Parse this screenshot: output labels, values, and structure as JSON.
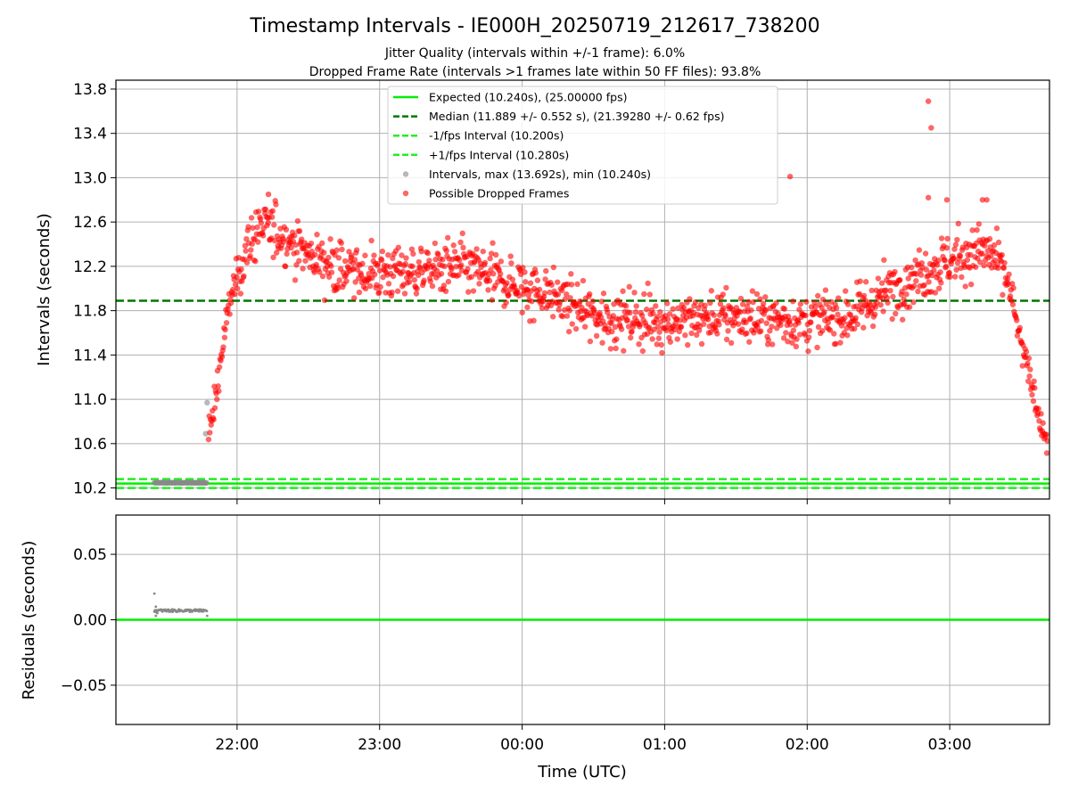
{
  "title": "Timestamp Intervals - IE000H_20250719_212617_738200",
  "subtitle_1": "Jitter Quality (intervals within +/-1 frame): 6.0%",
  "subtitle_2": "Dropped Frame Rate (intervals >1 frames late within 50 FF files): 93.8%",
  "colors": {
    "expected": "#00ee00",
    "median": "#007700",
    "interval_band": "#22ee22",
    "intervals_point": "#888888",
    "dropped_point": "#ff0000",
    "grid": "#b0b0b0"
  },
  "chart_data": [
    {
      "type": "scatter",
      "panel": "top",
      "ylabel": "Intervals (seconds)",
      "xlabel": "",
      "ylim": [
        10.1,
        13.88
      ],
      "x_range_hours": [
        21.15,
        27.7
      ],
      "yticks": [
        10.2,
        10.6,
        11.0,
        11.4,
        11.8,
        12.2,
        12.6,
        13.0,
        13.4,
        13.8
      ],
      "ytick_labels": [
        "10.2",
        "10.6",
        "11.0",
        "11.4",
        "11.8",
        "12.2",
        "12.6",
        "13.0",
        "13.4",
        "13.8"
      ],
      "grid": true,
      "legend_position": "upper-center",
      "reference_lines": [
        {
          "name": "Expected (10.240s), (25.00000 fps)",
          "y": 10.24,
          "style": "solid",
          "color": "#00ee00"
        },
        {
          "name": "Median (11.889 +/- 0.552 s), (21.39280 +/- 0.62 fps)",
          "y": 11.889,
          "style": "dashed",
          "color": "#007700"
        },
        {
          "name": "-1/fps Interval (10.200s)",
          "y": 10.2,
          "style": "dashed",
          "color": "#22ee22"
        },
        {
          "name": "+1/fps Interval (10.280s)",
          "y": 10.28,
          "style": "dashed",
          "color": "#22ee22"
        }
      ],
      "series": [
        {
          "name": "Intervals, max (13.692s), min (10.240s)",
          "color": "#888888"
        },
        {
          "name": "Possible Dropped Frames",
          "color": "#ff0000"
        }
      ],
      "trend_profile": {
        "description_points_x_hours": [
          21.82,
          21.88,
          21.95,
          22.05,
          22.15,
          22.3,
          22.5,
          22.8,
          23.2,
          23.6,
          23.9,
          24.2,
          24.5,
          25.0,
          25.5,
          26.0,
          26.3,
          26.6,
          26.9,
          27.1,
          27.2,
          27.3,
          27.4,
          27.5,
          27.6,
          27.68
        ],
        "description_points_y": [
          10.75,
          11.3,
          11.9,
          12.3,
          12.55,
          12.5,
          12.3,
          12.15,
          12.15,
          12.2,
          12.05,
          11.95,
          11.75,
          11.7,
          11.75,
          11.7,
          11.75,
          12.0,
          12.2,
          12.3,
          12.35,
          12.3,
          12.1,
          11.5,
          11.0,
          10.6
        ]
      }
    },
    {
      "type": "scatter",
      "panel": "bottom",
      "ylabel": "Residuals (seconds)",
      "xlabel": "Time (UTC)",
      "ylim": [
        -0.08,
        0.08
      ],
      "yticks": [
        0.05,
        0.0,
        -0.05
      ],
      "ytick_labels": [
        "0.05",
        "0.00",
        "−0.05"
      ],
      "xticks_hours": [
        22,
        23,
        24,
        25,
        26,
        27
      ],
      "xtick_labels": [
        "22:00",
        "23:00",
        "00:00",
        "01:00",
        "02:00",
        "03:00"
      ],
      "grid": true,
      "reference_lines": [
        {
          "y": 0.0,
          "style": "solid",
          "color": "#00ee00"
        }
      ]
    }
  ]
}
